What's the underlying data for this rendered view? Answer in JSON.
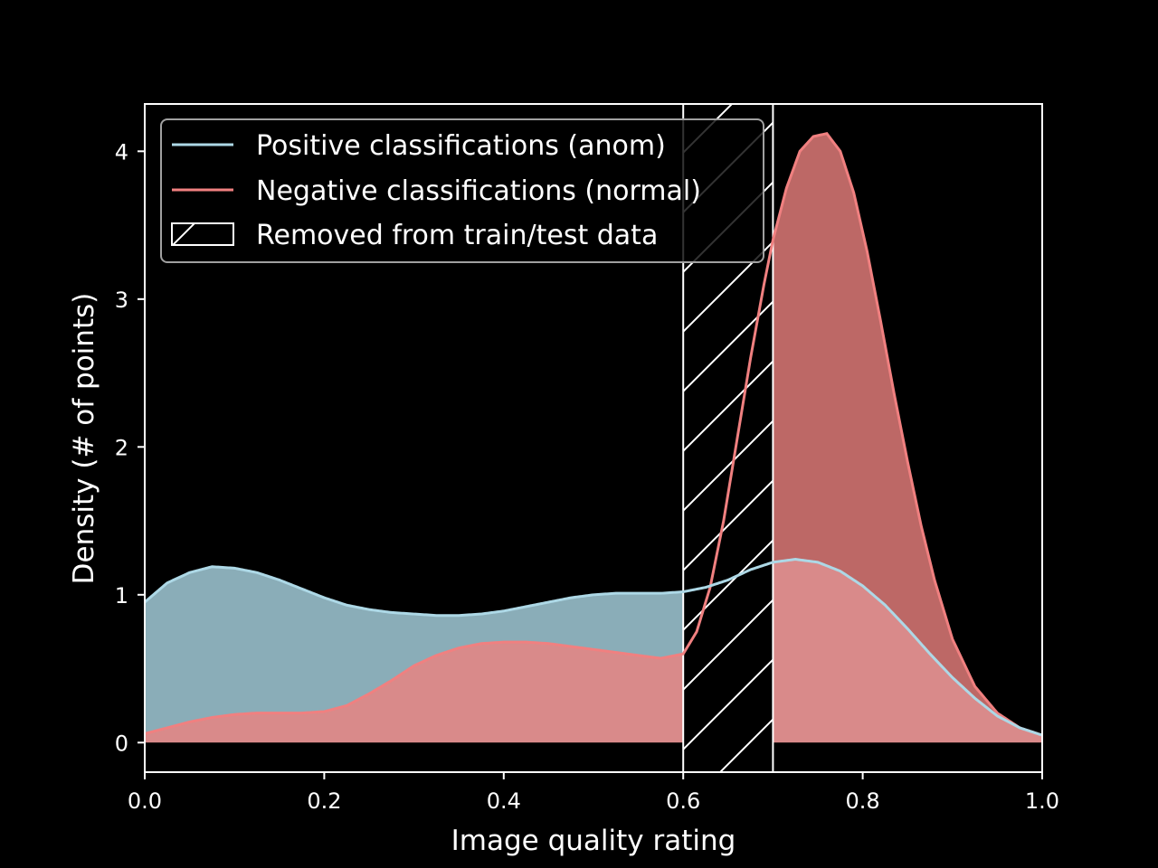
{
  "chart_data": {
    "type": "area",
    "xlabel": "Image quality rating",
    "ylabel": "Density (# of points)",
    "xlim": [
      0.0,
      1.0
    ],
    "ylim": [
      -0.2,
      4.32
    ],
    "x_ticks": [
      "0.0",
      "0.2",
      "0.4",
      "0.6",
      "0.8",
      "1.0"
    ],
    "y_ticks": [
      "0",
      "1",
      "2",
      "3",
      "4"
    ],
    "legend_position": "top-left",
    "removed_region": {
      "x_start": 0.6,
      "x_end": 0.7,
      "label": "Removed from train/test data"
    },
    "series": [
      {
        "name": "Positive classifications (anom)",
        "line_color": "#add8e6",
        "fill_color": "#8aadb8",
        "x": [
          0.0,
          0.025,
          0.05,
          0.075,
          0.1,
          0.125,
          0.15,
          0.175,
          0.2,
          0.225,
          0.25,
          0.275,
          0.3,
          0.325,
          0.35,
          0.375,
          0.4,
          0.425,
          0.45,
          0.475,
          0.5,
          0.525,
          0.55,
          0.575,
          0.6,
          0.625,
          0.65,
          0.675,
          0.7,
          0.725,
          0.75,
          0.775,
          0.8,
          0.825,
          0.85,
          0.875,
          0.9,
          0.925,
          0.95,
          0.975,
          1.0
        ],
        "y": [
          0.95,
          1.08,
          1.15,
          1.19,
          1.18,
          1.15,
          1.1,
          1.04,
          0.98,
          0.93,
          0.9,
          0.88,
          0.87,
          0.86,
          0.86,
          0.87,
          0.89,
          0.92,
          0.95,
          0.98,
          1.0,
          1.01,
          1.01,
          1.01,
          1.02,
          1.05,
          1.1,
          1.17,
          1.22,
          1.24,
          1.22,
          1.16,
          1.06,
          0.93,
          0.77,
          0.6,
          0.44,
          0.3,
          0.18,
          0.1,
          0.05
        ]
      },
      {
        "name": "Negative classifications (normal)",
        "line_color": "#f08080",
        "fill_color": "#d98a8a",
        "fill_color_overlap": "#bd6866",
        "x": [
          0.0,
          0.025,
          0.05,
          0.075,
          0.1,
          0.125,
          0.15,
          0.175,
          0.2,
          0.225,
          0.25,
          0.275,
          0.3,
          0.325,
          0.35,
          0.375,
          0.4,
          0.425,
          0.45,
          0.475,
          0.5,
          0.525,
          0.55,
          0.575,
          0.6,
          0.615,
          0.63,
          0.645,
          0.66,
          0.675,
          0.69,
          0.7,
          0.715,
          0.73,
          0.745,
          0.76,
          0.775,
          0.79,
          0.805,
          0.82,
          0.835,
          0.85,
          0.865,
          0.88,
          0.9,
          0.925,
          0.95,
          0.975,
          1.0
        ],
        "y": [
          0.06,
          0.1,
          0.14,
          0.17,
          0.19,
          0.2,
          0.2,
          0.2,
          0.21,
          0.25,
          0.33,
          0.42,
          0.52,
          0.59,
          0.64,
          0.67,
          0.68,
          0.68,
          0.67,
          0.65,
          0.63,
          0.61,
          0.59,
          0.57,
          0.6,
          0.75,
          1.05,
          1.5,
          2.05,
          2.6,
          3.1,
          3.4,
          3.75,
          4.0,
          4.1,
          4.12,
          4.0,
          3.72,
          3.32,
          2.85,
          2.36,
          1.9,
          1.47,
          1.1,
          0.7,
          0.38,
          0.2,
          0.1,
          0.05
        ]
      }
    ]
  }
}
